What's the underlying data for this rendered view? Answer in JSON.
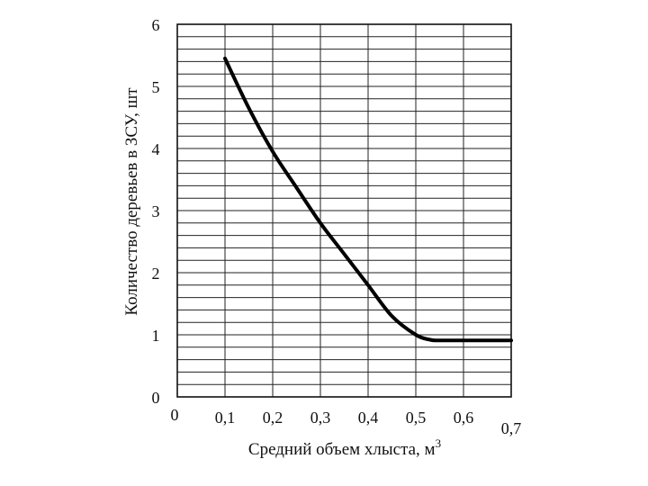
{
  "chart_data": {
    "type": "line",
    "xlabel": "Средний объем хлыста, м",
    "xlabel_superscript": "3",
    "ylabel": "Количество деревьев в ЗСУ, шт",
    "xlim": [
      0,
      0.7
    ],
    "ylim": [
      0,
      6
    ],
    "x_ticks": [
      "0",
      "0,1",
      "0,2",
      "0,3",
      "0,4",
      "0,5",
      "0,6",
      "0,7"
    ],
    "y_ticks": [
      "0",
      "1",
      "2",
      "3",
      "4",
      "5",
      "6"
    ],
    "grid": true,
    "series": [
      {
        "x": [
          0.1,
          0.15,
          0.2,
          0.25,
          0.3,
          0.35,
          0.4,
          0.45,
          0.5,
          0.53,
          0.55,
          0.6,
          0.65,
          0.7
        ],
        "y": [
          5.45,
          4.65,
          3.95,
          3.37,
          2.8,
          2.3,
          1.8,
          1.3,
          1.0,
          0.92,
          0.91,
          0.91,
          0.91,
          0.91
        ]
      }
    ]
  }
}
